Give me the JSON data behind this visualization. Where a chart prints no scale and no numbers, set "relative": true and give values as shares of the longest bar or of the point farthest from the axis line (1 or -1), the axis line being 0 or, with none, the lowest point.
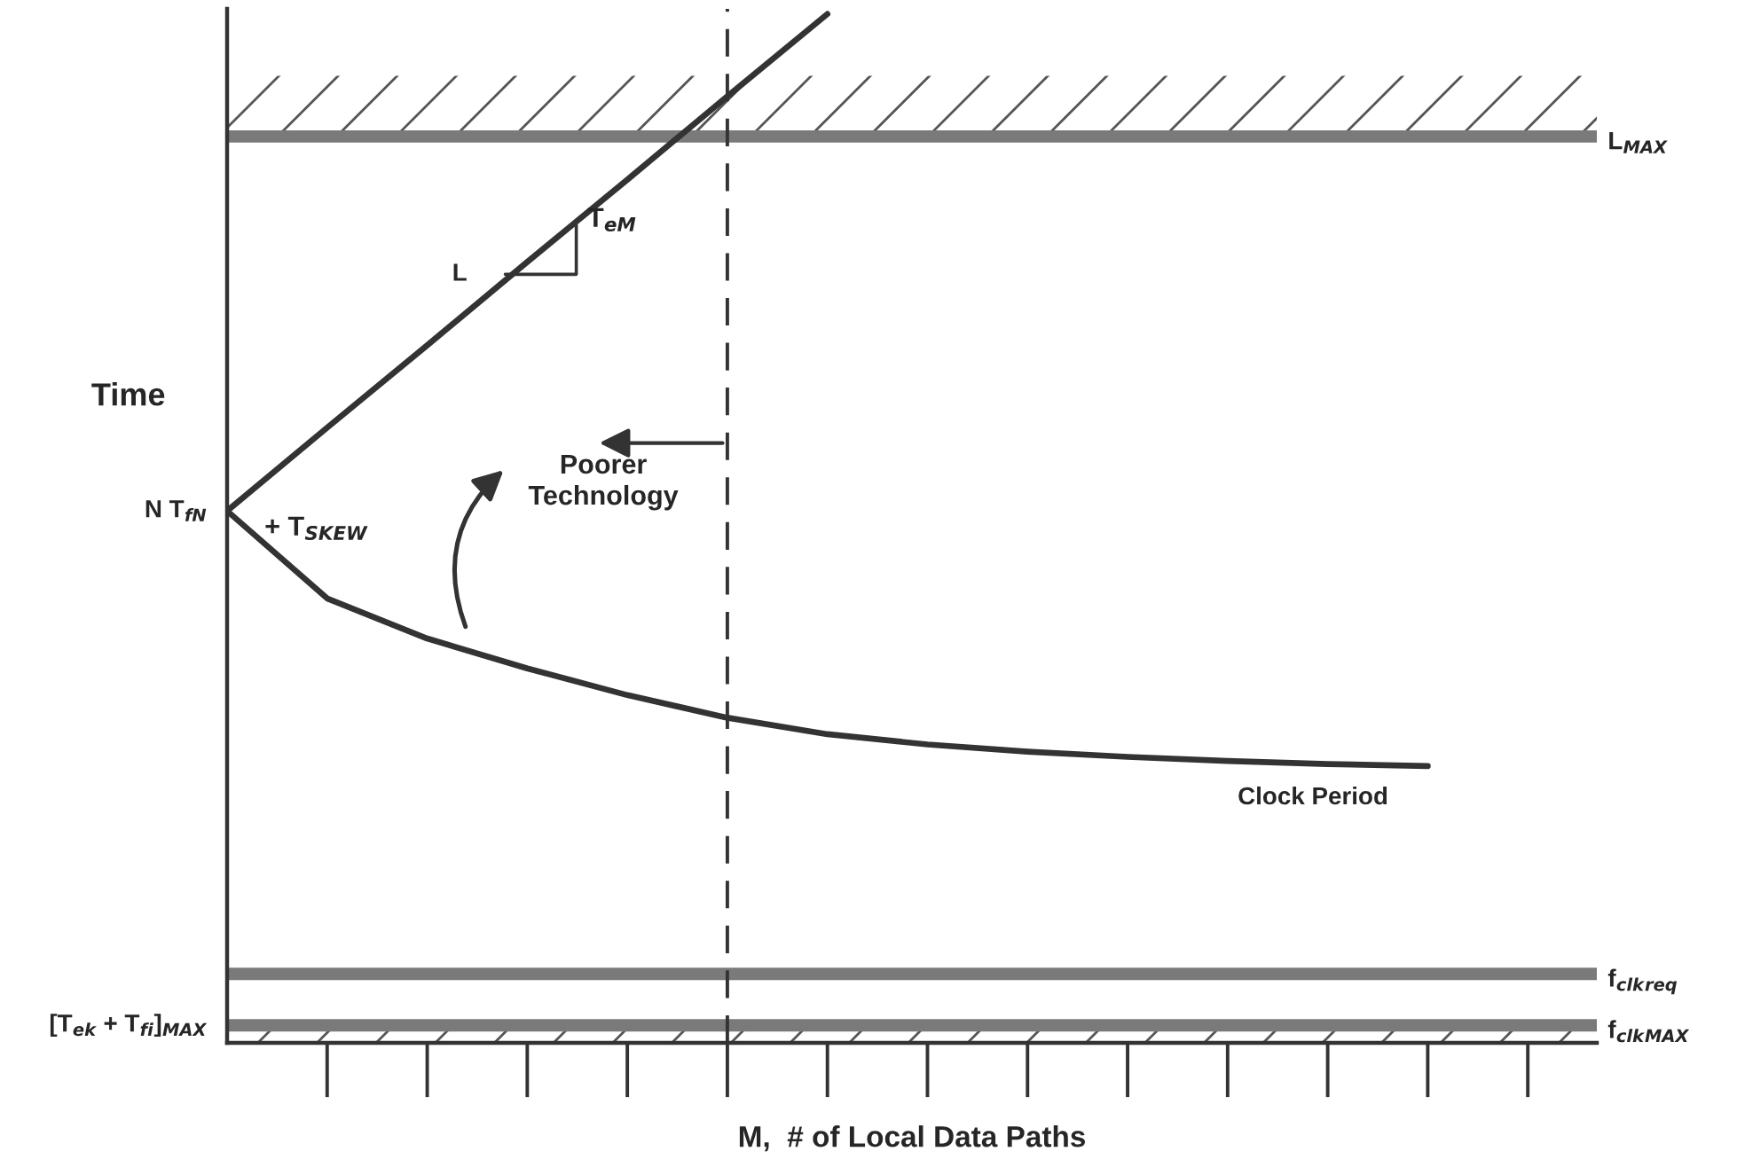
{
  "chart_data": {
    "type": "line",
    "relative": true,
    "tick_labels": false,
    "xlabel": "M,  # of Local Data Paths",
    "ylabel": "Time",
    "categories": [
      null,
      null,
      null,
      null,
      null,
      null,
      null,
      null,
      null,
      null,
      null,
      null,
      null,
      null
    ],
    "series": [
      {
        "name": "L",
        "color": "#333333",
        "values": [
          0.517,
          0.598,
          0.678,
          0.759,
          0.839,
          0.92,
          1.0,
          null,
          null,
          null,
          null,
          null,
          null,
          null
        ]
      },
      {
        "name": "Clock Period",
        "color": "#333333",
        "values": [
          0.517,
          0.432,
          0.393,
          0.364,
          0.338,
          0.316,
          0.3,
          0.29,
          0.283,
          0.278,
          0.274,
          0.271,
          0.269,
          null
        ]
      }
    ],
    "ref_lines": [
      {
        "axis": "y",
        "value": 0.881,
        "label": "L$_{MAX}$",
        "color": "#7a7a7a"
      },
      {
        "axis": "y",
        "value": 0.067,
        "label": "f$_{clk}$$_{req}$",
        "color": "#7a7a7a"
      },
      {
        "axis": "y",
        "value": 0.017,
        "label": "f$_{clk}$$_{MAX}$",
        "color": "#7a7a7a"
      }
    ],
    "bands": [
      {
        "axis": "y",
        "from": 0.881,
        "to": 0.94
      },
      {
        "axis": "y",
        "from": 0.0,
        "to": 0.017
      }
    ],
    "annotations": [
      "N T$_{fN}$",
      "[T$_{ek}$ + T$_{fi}$]$_{MAX}$",
      "T$_{eM}$",
      "+ T$_{SKEW}$",
      "Poorer\nTechnology"
    ]
  }
}
